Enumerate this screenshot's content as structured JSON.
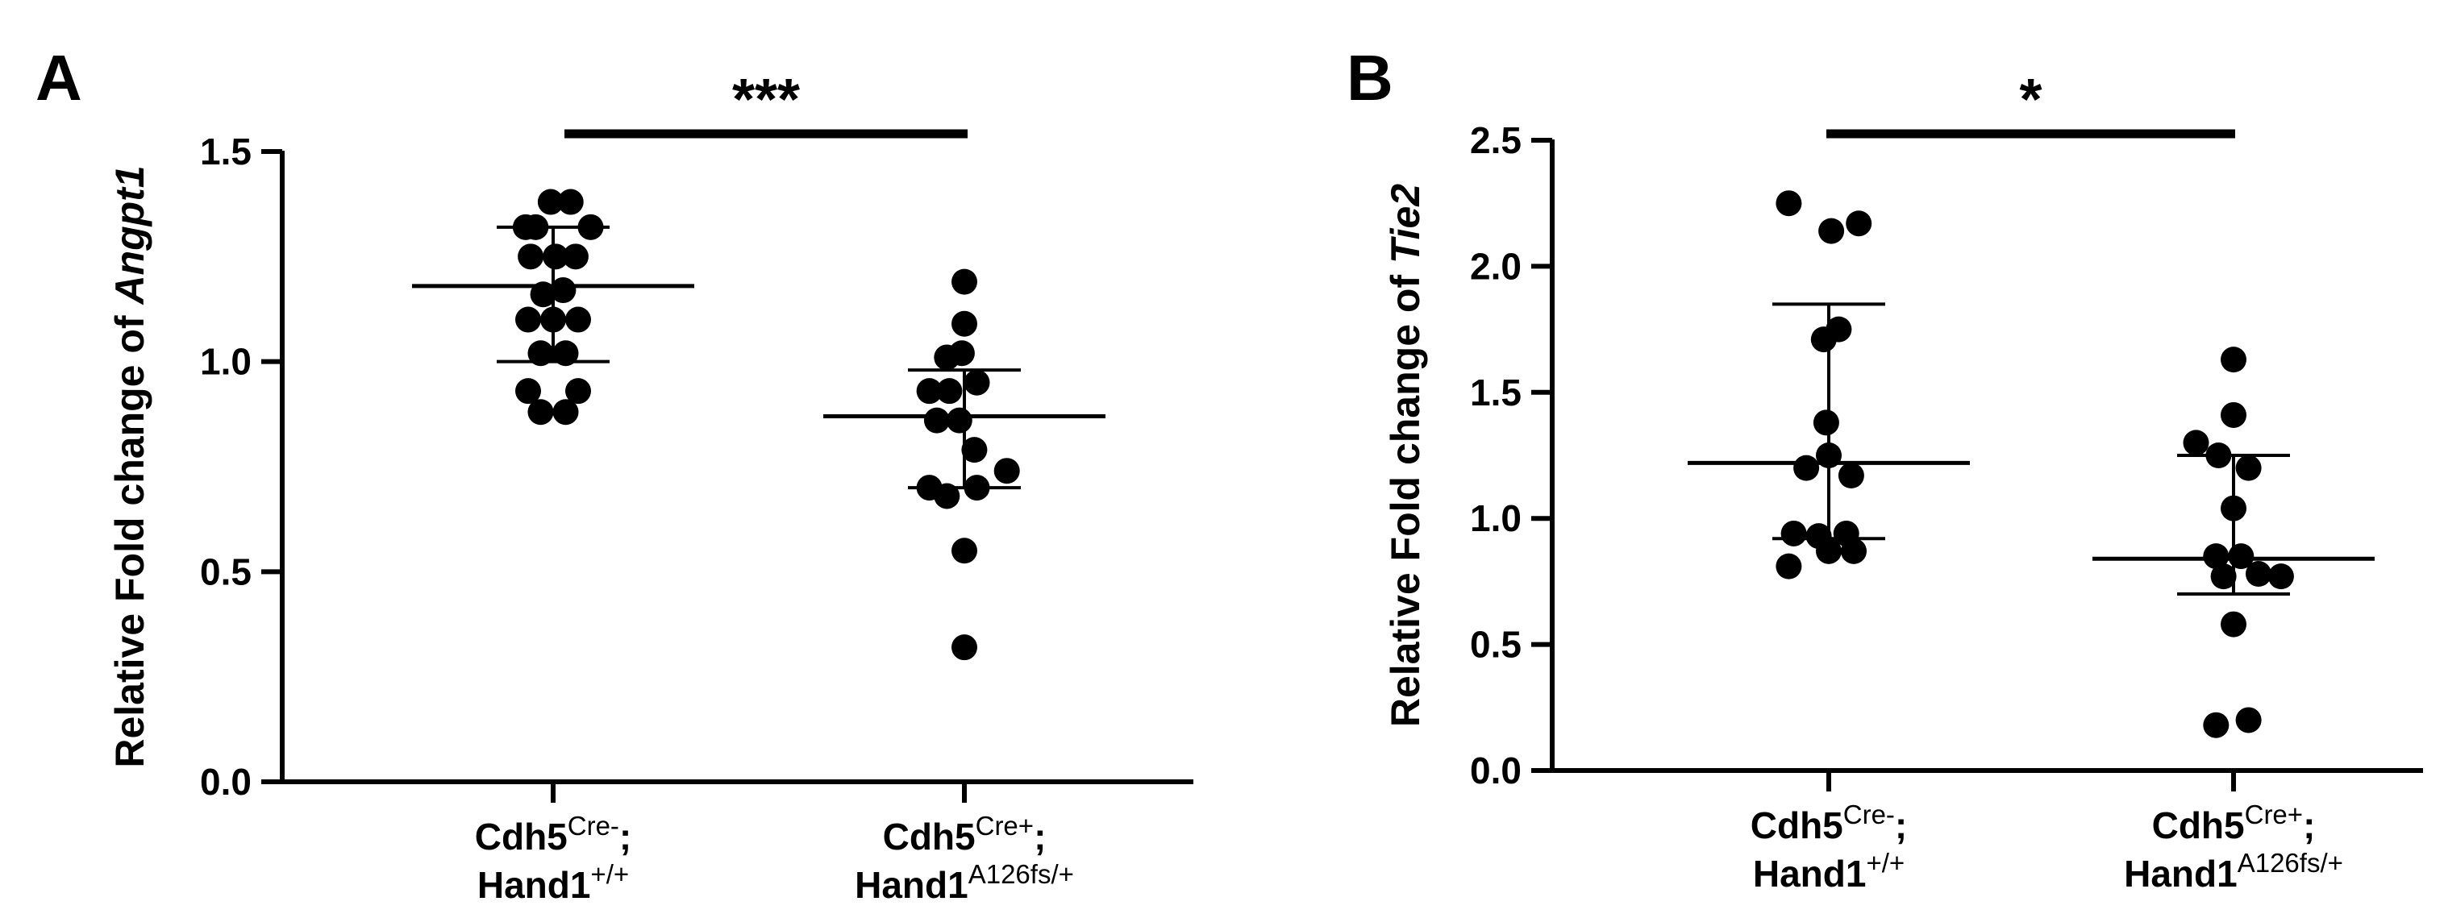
{
  "chart_data": [
    {
      "type": "scatter",
      "panel": "A",
      "ylabel": {
        "prefix": "Relative Fold change of ",
        "gene": "Angpt1"
      },
      "ylim": [
        0,
        1.5
      ],
      "yticks": [
        "0.0",
        "0.5",
        "1.0",
        "1.5"
      ],
      "categories": [
        {
          "line1_base": "Cdh5",
          "line1_sup": "Cre-",
          "line1_tail": ";",
          "line2_base": "Hand1",
          "line2_sup": "+/+"
        },
        {
          "line1_base": "Cdh5",
          "line1_sup": "Cre+",
          "line1_tail": ";",
          "line2_base": "Hand1",
          "line2_sup": "A126fs/+"
        }
      ],
      "series": [
        {
          "points": [
            {
              "dx": -0.35,
              "y": 1.32
            },
            {
              "dx": -0.05,
              "y": 1.38
            },
            {
              "dx": 0.35,
              "y": 1.38
            },
            {
              "dx": 0.75,
              "y": 1.32
            },
            {
              "dx": -0.55,
              "y": 1.32
            },
            {
              "dx": -0.45,
              "y": 1.25
            },
            {
              "dx": 0.05,
              "y": 1.25
            },
            {
              "dx": 0.45,
              "y": 1.25
            },
            {
              "dx": -0.2,
              "y": 1.16
            },
            {
              "dx": 0.2,
              "y": 1.17
            },
            {
              "dx": -0.5,
              "y": 1.1
            },
            {
              "dx": 0.0,
              "y": 1.1
            },
            {
              "dx": 0.5,
              "y": 1.1
            },
            {
              "dx": -0.25,
              "y": 1.02
            },
            {
              "dx": 0.25,
              "y": 1.02
            },
            {
              "dx": -0.5,
              "y": 0.93
            },
            {
              "dx": 0.5,
              "y": 0.93
            },
            {
              "dx": -0.25,
              "y": 0.88
            },
            {
              "dx": 0.25,
              "y": 0.88
            }
          ],
          "median": 1.18,
          "err_low": 1.0,
          "err_high": 1.32
        },
        {
          "points": [
            {
              "dx": 0.0,
              "y": 1.19
            },
            {
              "dx": 0.0,
              "y": 1.09
            },
            {
              "dx": -0.35,
              "y": 1.01
            },
            {
              "dx": -0.05,
              "y": 1.02
            },
            {
              "dx": -0.7,
              "y": 0.93
            },
            {
              "dx": -0.3,
              "y": 0.93
            },
            {
              "dx": 0.25,
              "y": 0.95
            },
            {
              "dx": -0.55,
              "y": 0.86
            },
            {
              "dx": -0.1,
              "y": 0.86
            },
            {
              "dx": 0.2,
              "y": 0.79
            },
            {
              "dx": 0.85,
              "y": 0.74
            },
            {
              "dx": -0.7,
              "y": 0.7
            },
            {
              "dx": -0.35,
              "y": 0.68
            },
            {
              "dx": 0.25,
              "y": 0.7
            },
            {
              "dx": 0.0,
              "y": 0.55
            },
            {
              "dx": 0.0,
              "y": 0.32
            }
          ],
          "median": 0.87,
          "err_low": 0.7,
          "err_high": 0.98
        }
      ],
      "significance": "***"
    },
    {
      "type": "scatter",
      "panel": "B",
      "ylabel": {
        "prefix": "Relative Fold change of ",
        "gene": "Tie2"
      },
      "ylim": [
        0,
        2.5
      ],
      "yticks": [
        "0.0",
        "0.5",
        "1.0",
        "1.5",
        "2.0",
        "2.5"
      ],
      "categories": [
        {
          "line1_base": "Cdh5",
          "line1_sup": "Cre-",
          "line1_tail": ";",
          "line2_base": "Hand1",
          "line2_sup": "+/+"
        },
        {
          "line1_base": "Cdh5",
          "line1_sup": "Cre+",
          "line1_tail": ";",
          "line2_base": "Hand1",
          "line2_sup": "A126fs/+"
        }
      ],
      "series": [
        {
          "points": [
            {
              "dx": -0.8,
              "y": 2.25
            },
            {
              "dx": 0.6,
              "y": 2.17
            },
            {
              "dx": 0.05,
              "y": 2.14
            },
            {
              "dx": 0.2,
              "y": 1.75
            },
            {
              "dx": -0.1,
              "y": 1.71
            },
            {
              "dx": -0.05,
              "y": 1.38
            },
            {
              "dx": -0.45,
              "y": 1.2
            },
            {
              "dx": 0.0,
              "y": 1.25
            },
            {
              "dx": 0.45,
              "y": 1.17
            },
            {
              "dx": -0.7,
              "y": 0.94
            },
            {
              "dx": -0.2,
              "y": 0.93
            },
            {
              "dx": 0.35,
              "y": 0.94
            },
            {
              "dx": -0.8,
              "y": 0.81
            },
            {
              "dx": 0.0,
              "y": 0.87
            },
            {
              "dx": 0.5,
              "y": 0.87
            }
          ],
          "median": 1.22,
          "err_low": 0.92,
          "err_high": 1.85
        },
        {
          "points": [
            {
              "dx": 0.0,
              "y": 1.63
            },
            {
              "dx": 0.0,
              "y": 1.41
            },
            {
              "dx": -0.75,
              "y": 1.3
            },
            {
              "dx": -0.3,
              "y": 1.25
            },
            {
              "dx": 0.3,
              "y": 1.2
            },
            {
              "dx": 0.0,
              "y": 1.04
            },
            {
              "dx": -0.35,
              "y": 0.85
            },
            {
              "dx": 0.15,
              "y": 0.85
            },
            {
              "dx": 0.5,
              "y": 0.78
            },
            {
              "dx": 0.95,
              "y": 0.77
            },
            {
              "dx": -0.2,
              "y": 0.77
            },
            {
              "dx": 0.0,
              "y": 0.58
            },
            {
              "dx": -0.35,
              "y": 0.18
            },
            {
              "dx": 0.3,
              "y": 0.2
            }
          ],
          "median": 0.84,
          "err_low": 0.7,
          "err_high": 1.25
        }
      ],
      "significance": "*"
    }
  ]
}
